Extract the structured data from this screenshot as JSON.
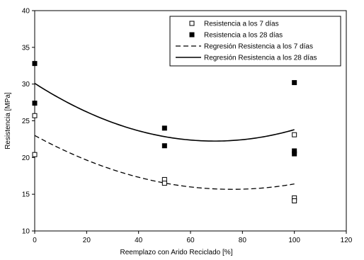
{
  "chart_data": {
    "type": "scatter",
    "xlabel": "Reemplazo con Arido Reciclado [%]",
    "ylabel": "Resistencia [MPa]",
    "xlim": [
      0,
      120
    ],
    "ylim": [
      10,
      40
    ],
    "xticks": [
      0,
      20,
      40,
      60,
      80,
      100,
      120
    ],
    "yticks": [
      10,
      15,
      20,
      25,
      30,
      35,
      40
    ],
    "grid": false,
    "legend": "top-right",
    "series": [
      {
        "name": "Resistencia a los 7 días",
        "marker": "open-square",
        "x": [
          0,
          0,
          50,
          50,
          100,
          100,
          100
        ],
        "y": [
          25.7,
          20.4,
          17.0,
          16.5,
          23.1,
          14.5,
          14.1
        ]
      },
      {
        "name": "Resistencia a los 28 días",
        "marker": "filled-square",
        "x": [
          0,
          0,
          50,
          50,
          100,
          100,
          100
        ],
        "y": [
          32.8,
          27.4,
          24.0,
          21.6,
          30.2,
          20.9,
          20.5
        ]
      },
      {
        "name": "Regresión Resistencia a los 7 días",
        "line": "dashed",
        "poly": [
          23.0,
          -0.1929,
          0.001269
        ]
      },
      {
        "name": "Regresión Resistencia a los 28 días",
        "line": "solid",
        "poly": [
          30.1,
          -0.2271,
          0.00164
        ]
      }
    ]
  }
}
